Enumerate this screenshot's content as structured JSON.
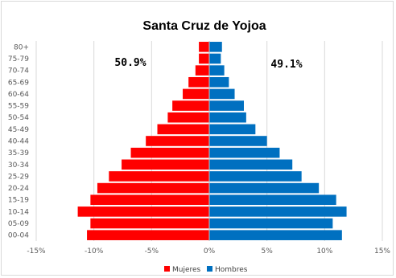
{
  "chart_data": {
    "type": "bar",
    "orientation": "horizontal",
    "title": "Santa Cruz de Yojoa",
    "categories": [
      "00-04",
      "05-09",
      "10-14",
      "15-19",
      "20-24",
      "25-29",
      "30-34",
      "35-39",
      "40-44",
      "45-49",
      "50-54",
      "55-59",
      "60-64",
      "65-69",
      "70-74",
      "75-79",
      "80+"
    ],
    "series": [
      {
        "name": "Mujeres",
        "color": "#ff0000",
        "values": [
          -10.6,
          -10.3,
          -11.4,
          -10.3,
          -9.7,
          -8.7,
          -7.6,
          -6.8,
          -5.5,
          -4.5,
          -3.6,
          -3.2,
          -2.3,
          -1.8,
          -1.2,
          -0.9,
          -0.9
        ]
      },
      {
        "name": "Hombres",
        "color": "#0070c0",
        "values": [
          11.5,
          10.7,
          11.9,
          11.0,
          9.5,
          8.0,
          7.2,
          6.1,
          5.0,
          4.0,
          3.2,
          3.0,
          2.2,
          1.7,
          1.3,
          1.0,
          1.1
        ]
      }
    ],
    "xlim": [
      -15,
      15
    ],
    "xticks": [
      -15,
      -10,
      -5,
      0,
      5,
      10,
      15
    ],
    "xtick_labels": [
      "-15%",
      "-10%",
      "-5%",
      "0%",
      "5%",
      "10%",
      "15%"
    ],
    "annotations": {
      "women_pct": "50.9%",
      "men_pct": "49.1%"
    },
    "grid": "vertical",
    "legend": "bottom-center"
  }
}
